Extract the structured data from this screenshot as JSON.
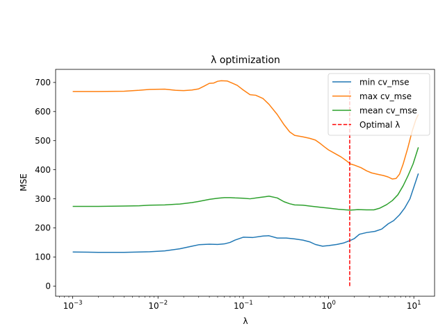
{
  "chart_data": {
    "type": "line",
    "title": "λ optimization",
    "xlabel": "λ",
    "ylabel": "MSE",
    "xscale": "log",
    "xlim": [
      0.00063,
      17.5
    ],
    "ylim": [
      -35,
      745
    ],
    "xticks": [
      {
        "value": 0.001,
        "base": "10",
        "exp": "−3"
      },
      {
        "value": 0.01,
        "base": "10",
        "exp": "−2"
      },
      {
        "value": 0.1,
        "base": "10",
        "exp": "−1"
      },
      {
        "value": 1,
        "base": "10",
        "exp": "0"
      },
      {
        "value": 10,
        "base": "10",
        "exp": "1"
      }
    ],
    "yticks": [
      0,
      100,
      200,
      300,
      400,
      500,
      600,
      700
    ],
    "ytick_labels": [
      "0",
      "100",
      "200",
      "300",
      "400",
      "500",
      "600",
      "700"
    ],
    "grid": false,
    "legend_position": "top-right",
    "series": [
      {
        "name": "min cv_mse",
        "color": "#1f77b4",
        "style": "solid",
        "x": [
          0.001,
          0.002,
          0.004,
          0.006,
          0.008,
          0.012,
          0.018,
          0.025,
          0.03,
          0.04,
          0.05,
          0.06,
          0.07,
          0.08,
          0.1,
          0.13,
          0.17,
          0.2,
          0.25,
          0.32,
          0.4,
          0.5,
          0.6,
          0.7,
          0.85,
          1.0,
          1.25,
          1.5,
          1.8,
          2.0,
          2.3,
          2.8,
          3.5,
          4.2,
          5.0,
          5.8,
          6.8,
          7.8,
          9.0,
          10.0,
          11.3
        ],
        "y": [
          117,
          116,
          116,
          117,
          118,
          121,
          128,
          137,
          142,
          144,
          143,
          145,
          150,
          158,
          168,
          167,
          172,
          173,
          165,
          165,
          162,
          158,
          152,
          143,
          137,
          139,
          143,
          148,
          157,
          163,
          178,
          184,
          188,
          196,
          214,
          225,
          245,
          268,
          300,
          340,
          387
        ]
      },
      {
        "name": "max cv_mse",
        "color": "#ff7f0e",
        "style": "solid",
        "x": [
          0.001,
          0.002,
          0.004,
          0.006,
          0.008,
          0.012,
          0.016,
          0.02,
          0.025,
          0.03,
          0.035,
          0.04,
          0.045,
          0.05,
          0.055,
          0.065,
          0.075,
          0.085,
          0.1,
          0.12,
          0.14,
          0.17,
          0.2,
          0.25,
          0.3,
          0.35,
          0.4,
          0.5,
          0.6,
          0.7,
          0.8,
          0.9,
          1.0,
          1.2,
          1.4,
          1.6,
          1.8,
          2.0,
          2.4,
          2.8,
          3.2,
          3.8,
          4.4,
          5.0,
          5.6,
          6.2,
          6.8,
          7.5,
          8.5,
          9.5,
          10.5,
          11.3
        ],
        "y": [
          669,
          669,
          670,
          673,
          676,
          677,
          673,
          672,
          674,
          678,
          688,
          697,
          698,
          704,
          706,
          705,
          697,
          690,
          674,
          658,
          656,
          645,
          625,
          590,
          555,
          530,
          518,
          513,
          508,
          502,
          490,
          478,
          468,
          455,
          444,
          432,
          420,
          416,
          407,
          396,
          389,
          384,
          380,
          375,
          368,
          370,
          385,
          420,
          475,
          530,
          570,
          590
        ]
      },
      {
        "name": "mean cv_mse",
        "color": "#2ca02c",
        "style": "solid",
        "x": [
          0.001,
          0.002,
          0.004,
          0.006,
          0.008,
          0.012,
          0.018,
          0.025,
          0.03,
          0.04,
          0.05,
          0.06,
          0.07,
          0.08,
          0.1,
          0.12,
          0.15,
          0.18,
          0.2,
          0.25,
          0.3,
          0.35,
          0.4,
          0.5,
          0.6,
          0.8,
          1.0,
          1.3,
          1.6,
          1.8,
          2.2,
          2.8,
          3.4,
          4.0,
          4.8,
          5.6,
          6.5,
          7.5,
          8.5,
          9.8,
          11.3
        ],
        "y": [
          274,
          274,
          275,
          276,
          278,
          279,
          282,
          287,
          291,
          298,
          302,
          304,
          304,
          303,
          302,
          300,
          304,
          307,
          309,
          303,
          290,
          283,
          279,
          278,
          275,
          271,
          268,
          264,
          262,
          261,
          263,
          262,
          262,
          268,
          280,
          294,
          314,
          345,
          378,
          420,
          477
        ]
      },
      {
        "name": "Optimal λ",
        "color": "#ff0000",
        "style": "dashed",
        "x": [
          1.77,
          1.77
        ],
        "y": [
          0,
          680
        ]
      }
    ]
  }
}
